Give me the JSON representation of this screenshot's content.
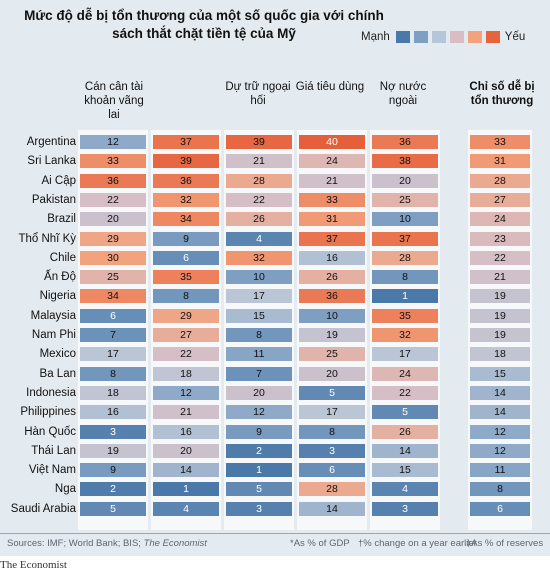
{
  "title": "Mức độ dễ bị tổn thương của một số quốc gia với chính sách thắt chặt tiền tệ của Mỹ",
  "legend": {
    "strong_label": "Mạnh",
    "weak_label": "Yếu",
    "swatch_colors": [
      "#4a78a8",
      "#7e9fc2",
      "#b5c6d9",
      "#d9bcc4",
      "#f2a27d",
      "#e5643e"
    ]
  },
  "column_headers": [
    "Cán cân tài khoản vãng lai",
    "",
    "Dự trữ ngoại hối",
    "Giá tiêu dùng",
    "Nợ nước ngoài",
    "Chỉ số dễ bị tổn thương"
  ],
  "footer": {
    "sources_prefix": "Sources: IMF; World Bank; BIS; ",
    "sources_pub": "The Economist",
    "note_gdp": "*As % of GDP",
    "note_price": "†% change on a year earlier",
    "note_reserves": "‡As % of reserves"
  },
  "brand": "The Economist",
  "chart_data": {
    "type": "table",
    "title": "Mức độ dễ bị tổn thương của một số quốc gia với chính sách thắt chặt tiền tệ của Mỹ",
    "color_scale": {
      "low_label": "Mạnh",
      "high_label": "Yếu",
      "low_color": "#4a78a8",
      "high_color": "#e5643e"
    },
    "columns": [
      "Cán cân tài khoản vãng lai",
      "",
      "Dự trữ ngoại hối",
      "Giá tiêu dùng",
      "Nợ nước ngoài",
      "Chỉ số dễ bị tổn thương"
    ],
    "rows": [
      {
        "country": "Argentina",
        "values": [
          12,
          37,
          39,
          40,
          36,
          33
        ]
      },
      {
        "country": "Sri Lanka",
        "values": [
          33,
          39,
          21,
          24,
          38,
          31
        ]
      },
      {
        "country": "Ai Cập",
        "values": [
          36,
          36,
          28,
          21,
          20,
          28
        ]
      },
      {
        "country": "Pakistan",
        "values": [
          22,
          32,
          22,
          33,
          25,
          27
        ]
      },
      {
        "country": "Brazil",
        "values": [
          20,
          34,
          26,
          31,
          10,
          24
        ]
      },
      {
        "country": "Thổ Nhĩ Kỳ",
        "values": [
          29,
          9,
          4,
          37,
          37,
          23
        ]
      },
      {
        "country": "Chile",
        "values": [
          30,
          6,
          32,
          16,
          28,
          22
        ]
      },
      {
        "country": "Ấn Độ",
        "values": [
          25,
          35,
          10,
          26,
          8,
          21
        ]
      },
      {
        "country": "Nigeria",
        "values": [
          34,
          8,
          17,
          36,
          1,
          19
        ]
      },
      {
        "country": "Malaysia",
        "values": [
          6,
          29,
          15,
          10,
          35,
          19
        ]
      },
      {
        "country": "Nam Phi",
        "values": [
          7,
          27,
          8,
          19,
          32,
          19
        ]
      },
      {
        "country": "Mexico",
        "values": [
          17,
          22,
          11,
          25,
          17,
          18
        ]
      },
      {
        "country": "Ba Lan",
        "values": [
          8,
          18,
          7,
          20,
          24,
          15
        ]
      },
      {
        "country": "Indonesia",
        "values": [
          18,
          12,
          20,
          5,
          22,
          14
        ]
      },
      {
        "country": "Philippines",
        "values": [
          16,
          21,
          12,
          17,
          5,
          14
        ]
      },
      {
        "country": "Hàn Quốc",
        "values": [
          3,
          16,
          9,
          8,
          26,
          12
        ]
      },
      {
        "country": "Thái Lan",
        "values": [
          19,
          20,
          2,
          3,
          14,
          12
        ]
      },
      {
        "country": "Việt Nam",
        "values": [
          9,
          14,
          1,
          6,
          15,
          11
        ]
      },
      {
        "country": "Nga",
        "values": [
          2,
          1,
          5,
          28,
          4,
          8
        ]
      },
      {
        "country": "Saudi Arabia",
        "values": [
          5,
          4,
          3,
          14,
          3,
          6
        ]
      }
    ]
  }
}
